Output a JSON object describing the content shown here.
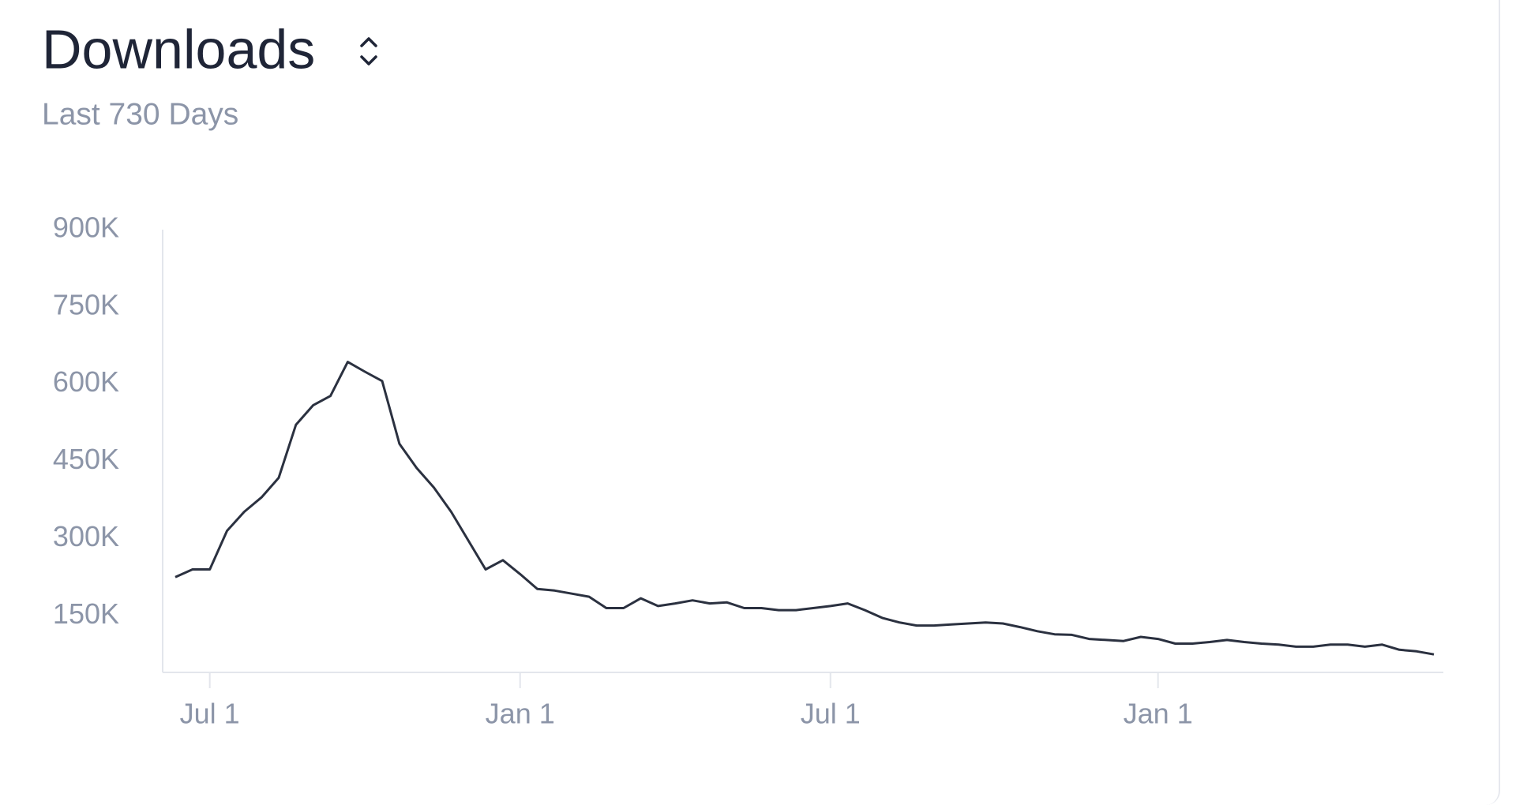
{
  "chart_data": {
    "type": "line",
    "title": "Downloads",
    "subtitle": "Last 730 Days",
    "categories": [
      null,
      null,
      "Jul 1",
      null,
      null,
      null,
      null,
      null,
      null,
      null,
      null,
      null,
      null,
      null,
      null,
      null,
      null,
      null,
      null,
      null,
      "Jan 1",
      null,
      null,
      null,
      null,
      null,
      null,
      null,
      null,
      null,
      null,
      null,
      null,
      null,
      null,
      null,
      null,
      null,
      "Jul 1",
      null,
      null,
      null,
      null,
      null,
      null,
      null,
      null,
      null,
      null,
      null,
      null,
      null,
      null,
      null,
      null,
      null,
      null,
      "Jan 1",
      null,
      null,
      null,
      null,
      null,
      null,
      null,
      null,
      null,
      null,
      null,
      null,
      null,
      null,
      null,
      null
    ],
    "values": [
      225000,
      240000,
      240000,
      315000,
      352000,
      380000,
      418000,
      521000,
      559000,
      577000,
      643000,
      624000,
      606000,
      484000,
      437000,
      399000,
      352000,
      296000,
      240000,
      258000,
      231000,
      202000,
      199000,
      193000,
      187000,
      165000,
      165000,
      184000,
      169000,
      174000,
      180000,
      174000,
      176000,
      165000,
      165000,
      161000,
      161000,
      165000,
      169000,
      174000,
      161000,
      146000,
      137000,
      131000,
      131000,
      133000,
      135000,
      137000,
      135000,
      128000,
      120000,
      114000,
      113000,
      105000,
      103000,
      101000,
      109000,
      105000,
      96000,
      96000,
      99000,
      103000,
      99000,
      96000,
      94000,
      90000,
      90000,
      94000,
      94000,
      90000,
      94000,
      84000,
      81000,
      75000
    ],
    "color": "#2b3140",
    "ylim": [
      40000,
      900000
    ],
    "yticks": [
      {
        "value": 150000,
        "label": "150K"
      },
      {
        "value": 300000,
        "label": "300K"
      },
      {
        "value": 450000,
        "label": "450K"
      },
      {
        "value": 600000,
        "label": "600K"
      },
      {
        "value": 750000,
        "label": "750K"
      },
      {
        "value": 900000,
        "label": "900K"
      }
    ],
    "grid": false
  }
}
